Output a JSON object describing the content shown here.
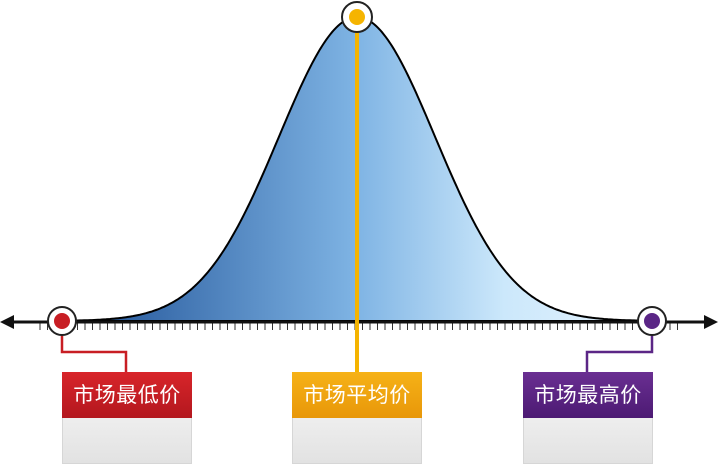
{
  "labels": {
    "low": "市场最低价",
    "average": "市场平均价",
    "high": "市场最高价"
  },
  "colors": {
    "low": "#c81e24",
    "average": "#f5b400",
    "high": "#5b2686",
    "curve_dark": "#1f4e96",
    "curve_light": "#dcefff",
    "axis": "#111111"
  }
}
